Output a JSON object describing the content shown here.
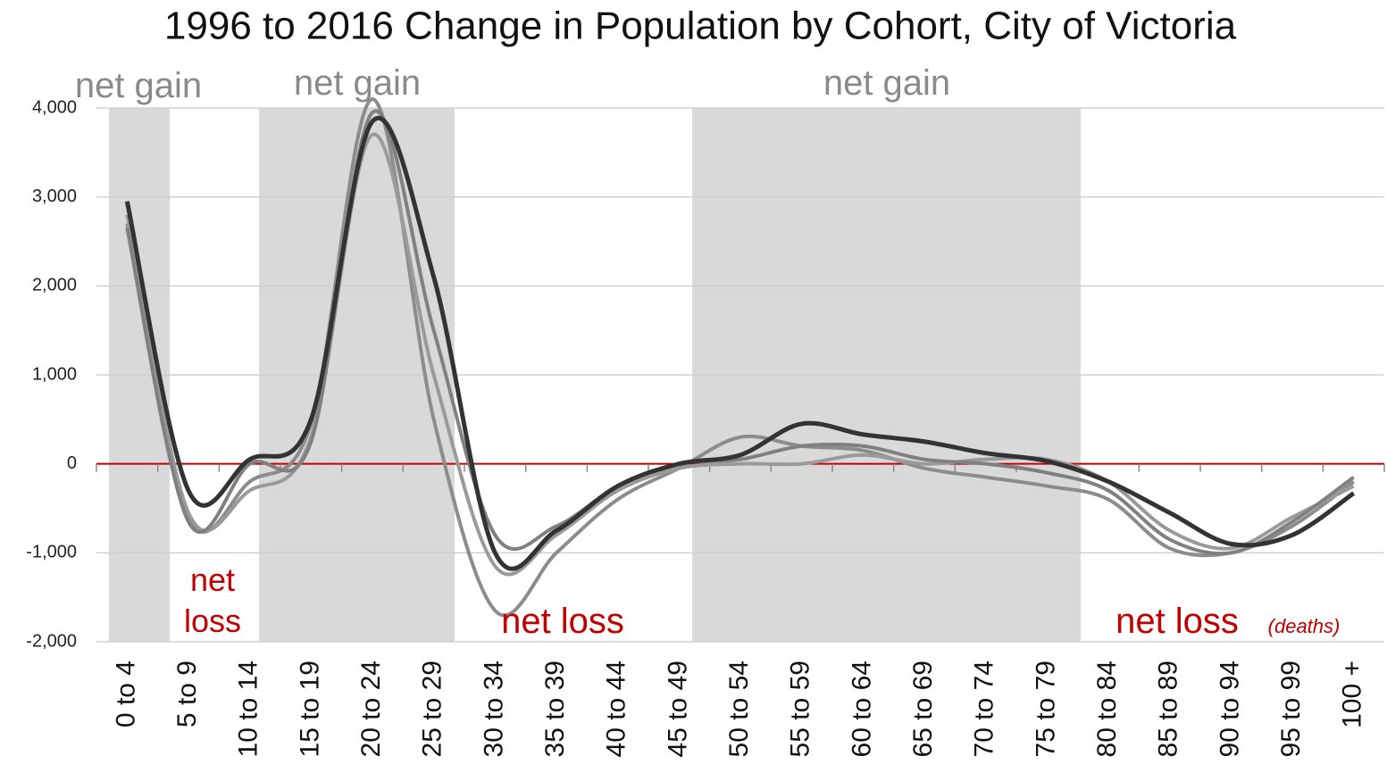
{
  "chart_data": {
    "type": "line",
    "title": "1996 to 2016 Change in Population by Cohort, City of Victoria",
    "categories": [
      "0 to 4",
      "5 to 9",
      "10 to 14",
      "15 to 19",
      "20 to 24",
      "25 to 29",
      "30 to 34",
      "35 to 39",
      "40 to 44",
      "45 to 49",
      "50 to 54",
      "55 to 59",
      "60 to 64",
      "65 to 69",
      "70 to 74",
      "75 to 79",
      "80 to 84",
      "85 to 89",
      "90 to 94",
      "95 to 99",
      "100 +"
    ],
    "series": [
      {
        "color": "#8c8c8c",
        "values": [
          2700,
          -600,
          -200,
          450,
          4100,
          500,
          -1650,
          -1000,
          -400,
          -50,
          300,
          200,
          150,
          -50,
          -150,
          -250,
          -400,
          -950,
          -1000,
          -700,
          -200
        ]
      },
      {
        "color": "#9a9a9a",
        "values": [
          2800,
          -550,
          -300,
          300,
          3700,
          1000,
          -1150,
          -800,
          -300,
          -50,
          0,
          0,
          100,
          0,
          50,
          50,
          -200,
          -750,
          -950,
          -600,
          -250
        ]
      },
      {
        "color": "#808080",
        "values": [
          2650,
          -650,
          0,
          250,
          3950,
          1500,
          -800,
          -700,
          -250,
          0,
          50,
          200,
          200,
          50,
          0,
          -100,
          -300,
          -850,
          -1000,
          -650,
          -150
        ]
      },
      {
        "color": "#333333",
        "values": [
          2950,
          -300,
          50,
          500,
          3850,
          2100,
          -1000,
          -750,
          -250,
          0,
          100,
          450,
          330,
          250,
          120,
          30,
          -200,
          -550,
          -900,
          -800,
          -330
        ]
      }
    ],
    "ylim": [
      -2000,
      4000
    ],
    "yticks": [
      {
        "value": -2000,
        "label": "-2,000"
      },
      {
        "value": -1000,
        "label": "-1,000"
      },
      0,
      {
        "value": 1000,
        "label": "1,000"
      },
      {
        "value": 2000,
        "label": "2,000"
      },
      {
        "value": 3000,
        "label": "3,000"
      },
      {
        "value": 4000,
        "label": "4,000"
      }
    ],
    "grid": true,
    "zero_line_color": "#c00000",
    "annotations": [
      {
        "text": "net gain",
        "color": "#8a8a8a"
      },
      {
        "text": "net gain",
        "color": "#8a8a8a"
      },
      {
        "text": "net gain",
        "color": "#8a8a8a"
      },
      {
        "text": "net loss",
        "color": "#c00000"
      },
      {
        "text": "net loss",
        "color": "#c00000"
      },
      {
        "text": "net loss",
        "color": "#c00000"
      },
      {
        "text": "(deaths)",
        "color": "#c00000"
      }
    ]
  }
}
